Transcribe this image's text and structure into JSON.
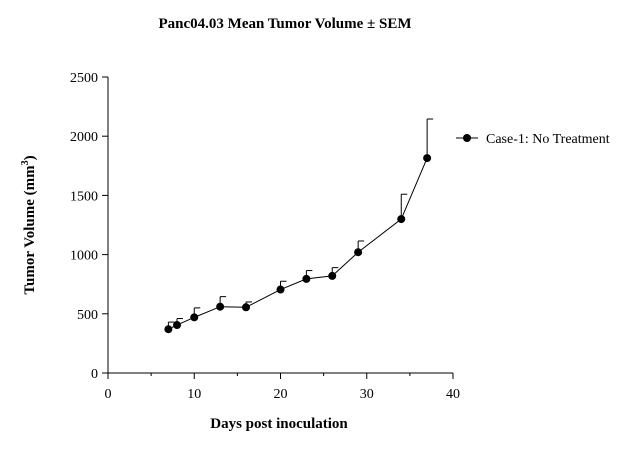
{
  "chart_data": {
    "type": "line",
    "title": "Panc04.03 Mean Tumor Volume ± SEM",
    "xlabel": "Days post inoculation",
    "ylabel": "Tumor Volume (mm",
    "ylabel_sup": "3",
    "ylabel_close": ")",
    "xlim": [
      0,
      40
    ],
    "ylim": [
      0,
      2500
    ],
    "x_ticks": [
      0,
      10,
      20,
      30,
      40
    ],
    "y_ticks": [
      0,
      500,
      1000,
      1500,
      2000,
      2500
    ],
    "x_ticks_labels": [
      "0",
      "10",
      "20",
      "30",
      "40"
    ],
    "y_ticks_labels": [
      "0",
      "500",
      "1000",
      "1500",
      "2000",
      "2500"
    ],
    "grid": false,
    "legend_position": "right",
    "series": [
      {
        "name": "Case-1: No Treatment",
        "color": "#000000",
        "x": [
          7,
          8,
          10,
          13,
          16,
          20,
          23,
          26,
          29,
          34,
          37
        ],
        "y": [
          370,
          405,
          470,
          560,
          555,
          705,
          795,
          820,
          1020,
          1300,
          1815
        ],
        "sem": [
          60,
          55,
          80,
          85,
          45,
          70,
          70,
          70,
          95,
          210,
          330
        ]
      }
    ]
  }
}
